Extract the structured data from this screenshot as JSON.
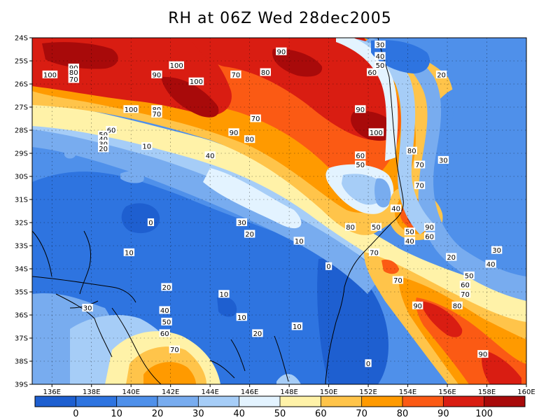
{
  "title": "RH at 06Z Wed 28dec2005",
  "lat_labels": [
    "24S",
    "25S",
    "26S",
    "27S",
    "28S",
    "29S",
    "30S",
    "31S",
    "32S",
    "33S",
    "34S",
    "35S",
    "36S",
    "37S",
    "38S",
    "39S"
  ],
  "lon_labels": [
    "136E",
    "138E",
    "140E",
    "142E",
    "144E",
    "146E",
    "148E",
    "150E",
    "152E",
    "154E",
    "156E",
    "158E",
    "160E"
  ],
  "colorbar": {
    "colors": [
      "#1e5fd0",
      "#2e74e0",
      "#4f90ea",
      "#78acef",
      "#a6cdf7",
      "#e3f3ff",
      "#fff2a8",
      "#ffc44a",
      "#ff9a00",
      "#fb5a14",
      "#d91d12",
      "#a80a0a"
    ],
    "labels": [
      "0",
      "10",
      "20",
      "30",
      "40",
      "50",
      "60",
      "70",
      "80",
      "90",
      "100"
    ]
  },
  "contour_labels": [
    {
      "text": "30",
      "lon": 152.6,
      "lat": -24.3
    },
    {
      "text": "40",
      "lon": 152.6,
      "lat": -24.8
    },
    {
      "text": "50",
      "lon": 152.6,
      "lat": -25.2
    },
    {
      "text": "60",
      "lon": 152.2,
      "lat": -25.5
    },
    {
      "text": "20",
      "lon": 155.7,
      "lat": -25.6
    },
    {
      "text": "90",
      "lon": 147.6,
      "lat": -24.6
    },
    {
      "text": "100",
      "lon": 142.3,
      "lat": -25.2
    },
    {
      "text": "100",
      "lon": 135.9,
      "lat": -25.6
    },
    {
      "text": "90",
      "lon": 137.1,
      "lat": -25.3
    },
    {
      "text": "80",
      "lon": 137.1,
      "lat": -25.5
    },
    {
      "text": "70",
      "lon": 137.1,
      "lat": -25.8
    },
    {
      "text": "90",
      "lon": 141.3,
      "lat": -25.6
    },
    {
      "text": "100",
      "lon": 143.3,
      "lat": -25.9
    },
    {
      "text": "70",
      "lon": 145.3,
      "lat": -25.6
    },
    {
      "text": "80",
      "lon": 146.8,
      "lat": -25.5
    },
    {
      "text": "100",
      "lon": 140.0,
      "lat": -27.1
    },
    {
      "text": "80",
      "lon": 141.3,
      "lat": -27.1
    },
    {
      "text": "70",
      "lon": 141.3,
      "lat": -27.3
    },
    {
      "text": "70",
      "lon": 146.3,
      "lat": -27.5
    },
    {
      "text": "90",
      "lon": 151.6,
      "lat": -27.1
    },
    {
      "text": "100",
      "lon": 152.4,
      "lat": -28.1
    },
    {
      "text": "90",
      "lon": 145.2,
      "lat": -28.1
    },
    {
      "text": "80",
      "lon": 146.0,
      "lat": -28.4
    },
    {
      "text": "60",
      "lon": 139.0,
      "lat": -28.0
    },
    {
      "text": "50",
      "lon": 138.6,
      "lat": -28.2
    },
    {
      "text": "40",
      "lon": 138.6,
      "lat": -28.4
    },
    {
      "text": "30",
      "lon": 138.6,
      "lat": -28.6
    },
    {
      "text": "20",
      "lon": 138.6,
      "lat": -28.8
    },
    {
      "text": "10",
      "lon": 140.8,
      "lat": -28.7
    },
    {
      "text": "40",
      "lon": 144.0,
      "lat": -29.1
    },
    {
      "text": "80",
      "lon": 154.2,
      "lat": -28.9
    },
    {
      "text": "60",
      "lon": 151.6,
      "lat": -29.1
    },
    {
      "text": "50",
      "lon": 151.6,
      "lat": -29.5
    },
    {
      "text": "70",
      "lon": 154.6,
      "lat": -29.5
    },
    {
      "text": "30",
      "lon": 155.8,
      "lat": -29.3
    },
    {
      "text": "70",
      "lon": 154.6,
      "lat": -30.4
    },
    {
      "text": "40",
      "lon": 153.4,
      "lat": -31.4
    },
    {
      "text": "0",
      "lon": 141.0,
      "lat": -32.0
    },
    {
      "text": "30",
      "lon": 145.6,
      "lat": -32.0
    },
    {
      "text": "20",
      "lon": 146.0,
      "lat": -32.5
    },
    {
      "text": "80",
      "lon": 151.1,
      "lat": -32.2
    },
    {
      "text": "50",
      "lon": 152.4,
      "lat": -32.2
    },
    {
      "text": "90",
      "lon": 155.1,
      "lat": -32.2
    },
    {
      "text": "50",
      "lon": 154.1,
      "lat": -32.4
    },
    {
      "text": "60",
      "lon": 155.1,
      "lat": -32.6
    },
    {
      "text": "40",
      "lon": 154.1,
      "lat": -32.8
    },
    {
      "text": "10",
      "lon": 148.5,
      "lat": -32.8
    },
    {
      "text": "10",
      "lon": 139.9,
      "lat": -33.3
    },
    {
      "text": "70",
      "lon": 152.3,
      "lat": -33.3
    },
    {
      "text": "30",
      "lon": 158.5,
      "lat": -33.2
    },
    {
      "text": "20",
      "lon": 156.2,
      "lat": -33.5
    },
    {
      "text": "0",
      "lon": 150.0,
      "lat": -33.9
    },
    {
      "text": "40",
      "lon": 158.2,
      "lat": -33.8
    },
    {
      "text": "50",
      "lon": 157.1,
      "lat": -34.3
    },
    {
      "text": "70",
      "lon": 153.5,
      "lat": -34.5
    },
    {
      "text": "60",
      "lon": 156.9,
      "lat": -34.7
    },
    {
      "text": "20",
      "lon": 141.8,
      "lat": -34.8
    },
    {
      "text": "70",
      "lon": 156.9,
      "lat": -35.1
    },
    {
      "text": "10",
      "lon": 144.7,
      "lat": -35.1
    },
    {
      "text": "80",
      "lon": 156.5,
      "lat": -35.6
    },
    {
      "text": "90",
      "lon": 154.5,
      "lat": -35.6
    },
    {
      "text": "30",
      "lon": 137.8,
      "lat": -35.7
    },
    {
      "text": "40",
      "lon": 141.7,
      "lat": -35.8
    },
    {
      "text": "50",
      "lon": 141.8,
      "lat": -36.3
    },
    {
      "text": "10",
      "lon": 145.6,
      "lat": -36.1
    },
    {
      "text": "60",
      "lon": 141.7,
      "lat": -36.8
    },
    {
      "text": "10",
      "lon": 148.4,
      "lat": -36.5
    },
    {
      "text": "20",
      "lon": 146.4,
      "lat": -36.8
    },
    {
      "text": "70",
      "lon": 142.2,
      "lat": -37.5
    },
    {
      "text": "90",
      "lon": 157.8,
      "lat": -37.7
    },
    {
      "text": "0",
      "lon": 152.0,
      "lat": -38.1
    }
  ]
}
